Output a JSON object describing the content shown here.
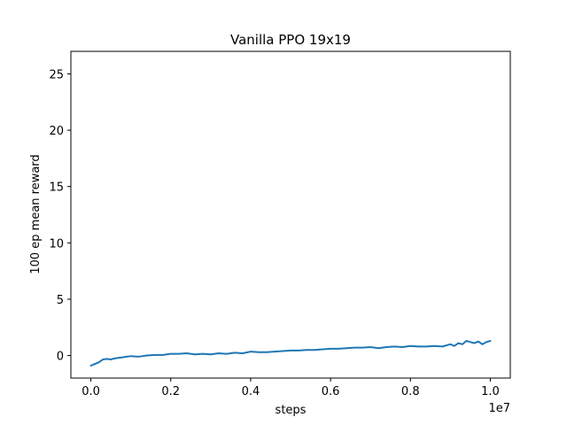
{
  "chart_data": {
    "type": "line",
    "title": "Vanilla PPO 19x19",
    "xlabel": "steps",
    "ylabel": "100 ep mean reward",
    "x_offset_label": "1e7",
    "xlim": [
      -0.05,
      1.05
    ],
    "ylim": [
      -2,
      27
    ],
    "x_ticks": [
      0.0,
      0.2,
      0.4,
      0.6,
      0.8,
      1.0
    ],
    "x_tick_labels": [
      "0.0",
      "0.2",
      "0.4",
      "0.6",
      "0.8",
      "1.0"
    ],
    "y_ticks": [
      0,
      5,
      10,
      15,
      20,
      25
    ],
    "y_tick_labels": [
      "0",
      "5",
      "10",
      "15",
      "20",
      "25"
    ],
    "grid": false,
    "series": [
      {
        "color": "#1f77b4",
        "x": [
          0.0,
          0.01,
          0.02,
          0.03,
          0.04,
          0.05,
          0.06,
          0.08,
          0.1,
          0.12,
          0.14,
          0.16,
          0.18,
          0.2,
          0.22,
          0.24,
          0.26,
          0.28,
          0.3,
          0.32,
          0.34,
          0.36,
          0.38,
          0.4,
          0.42,
          0.44,
          0.46,
          0.48,
          0.5,
          0.52,
          0.54,
          0.56,
          0.58,
          0.6,
          0.62,
          0.64,
          0.66,
          0.68,
          0.7,
          0.72,
          0.74,
          0.76,
          0.78,
          0.8,
          0.82,
          0.84,
          0.86,
          0.88,
          0.9,
          0.91,
          0.92,
          0.93,
          0.94,
          0.95,
          0.96,
          0.97,
          0.98,
          0.99,
          1.0
        ],
        "y": [
          -0.9,
          -0.75,
          -0.6,
          -0.35,
          -0.3,
          -0.35,
          -0.25,
          -0.15,
          -0.05,
          -0.1,
          0.0,
          0.05,
          0.05,
          0.15,
          0.15,
          0.2,
          0.1,
          0.15,
          0.1,
          0.2,
          0.15,
          0.25,
          0.2,
          0.35,
          0.3,
          0.3,
          0.35,
          0.4,
          0.45,
          0.45,
          0.5,
          0.5,
          0.55,
          0.6,
          0.6,
          0.65,
          0.7,
          0.7,
          0.75,
          0.65,
          0.75,
          0.8,
          0.75,
          0.85,
          0.8,
          0.8,
          0.85,
          0.8,
          1.0,
          0.85,
          1.1,
          1.0,
          1.3,
          1.2,
          1.1,
          1.25,
          1.0,
          1.2,
          1.3
        ]
      }
    ]
  }
}
